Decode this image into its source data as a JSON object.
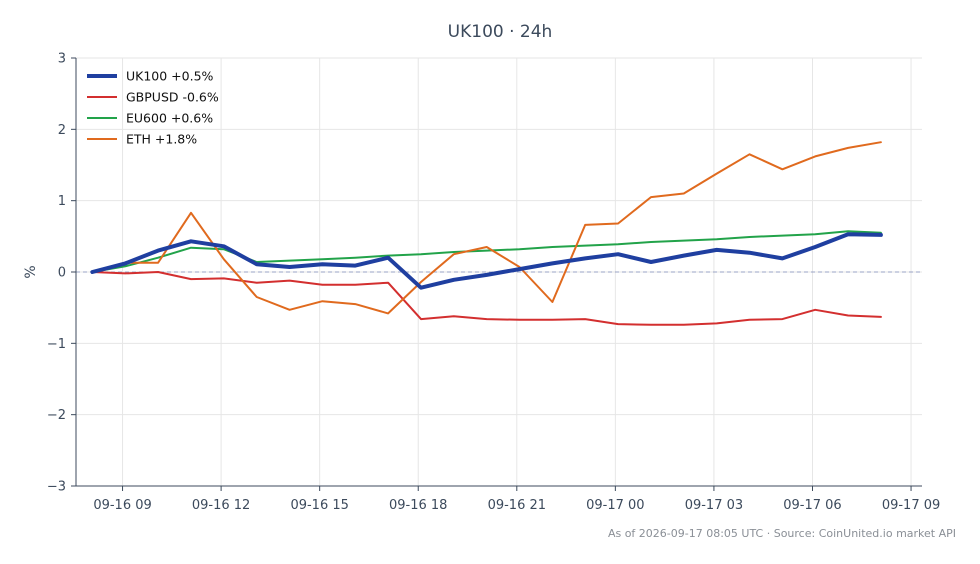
{
  "chart_data": {
    "type": "line",
    "title": "UK100 · 24h",
    "xlabel": "",
    "ylabel": "%",
    "ylim": [
      -3,
      3
    ],
    "yticks": [
      -3,
      -2,
      -1,
      0,
      1,
      2,
      3
    ],
    "ytick_labels": [
      "−3",
      "−2",
      "−1",
      "0",
      "1",
      "2",
      "3"
    ],
    "x_range": [
      "2026-09-16 07:35",
      "2026-09-17 09:20"
    ],
    "xticks": [
      "2026-09-16 09:00",
      "2026-09-16 12:00",
      "2026-09-16 15:00",
      "2026-09-16 18:00",
      "2026-09-16 21:00",
      "2026-09-17 00:00",
      "2026-09-17 03:00",
      "2026-09-17 06:00",
      "2026-09-17 09:00"
    ],
    "xtick_labels": [
      "09-16 09",
      "09-16 12",
      "09-16 15",
      "09-16 18",
      "09-16 21",
      "09-17 00",
      "09-17 03",
      "09-17 06",
      "09-17 09"
    ],
    "grid": true,
    "zero_line": true,
    "legend_position": "top-left",
    "x": [
      "2026-09-16 08:05",
      "2026-09-16 09:05",
      "2026-09-16 10:05",
      "2026-09-16 11:05",
      "2026-09-16 12:05",
      "2026-09-16 13:05",
      "2026-09-16 14:05",
      "2026-09-16 15:05",
      "2026-09-16 16:05",
      "2026-09-16 17:05",
      "2026-09-16 18:05",
      "2026-09-16 19:05",
      "2026-09-16 20:05",
      "2026-09-16 21:05",
      "2026-09-16 22:05",
      "2026-09-16 23:05",
      "2026-09-17 00:05",
      "2026-09-17 01:05",
      "2026-09-17 02:05",
      "2026-09-17 03:05",
      "2026-09-17 04:05",
      "2026-09-17 05:05",
      "2026-09-17 06:05",
      "2026-09-17 07:05",
      "2026-09-17 08:05"
    ],
    "series": [
      {
        "name": "UK100 +0.5%",
        "color": "#1f3fa0",
        "width": 4,
        "values": [
          0.0,
          0.12,
          0.3,
          0.43,
          0.36,
          0.11,
          0.07,
          0.11,
          0.09,
          0.2,
          -0.22,
          -0.11,
          -0.04,
          0.04,
          0.12,
          0.19,
          0.25,
          0.14,
          0.23,
          0.31,
          0.27,
          0.19,
          0.35,
          0.53,
          0.52
        ]
      },
      {
        "name": "GBPUSD -0.6%",
        "color": "#d32f2f",
        "width": 2,
        "values": [
          0.0,
          -0.02,
          0.0,
          -0.1,
          -0.09,
          -0.15,
          -0.12,
          -0.18,
          -0.18,
          -0.15,
          -0.66,
          -0.62,
          -0.66,
          -0.67,
          -0.67,
          -0.66,
          -0.73,
          -0.74,
          -0.74,
          -0.72,
          -0.67,
          -0.66,
          -0.53,
          -0.61,
          -0.63
        ]
      },
      {
        "name": "EU600 +0.6%",
        "color": "#22a34a",
        "width": 2,
        "values": [
          0.0,
          0.08,
          0.2,
          0.34,
          0.32,
          0.14,
          0.16,
          0.18,
          0.2,
          0.23,
          0.25,
          0.28,
          0.3,
          0.32,
          0.35,
          0.37,
          0.39,
          0.42,
          0.44,
          0.46,
          0.49,
          0.51,
          0.53,
          0.57,
          0.55
        ]
      },
      {
        "name": "ETH +1.8%",
        "color": "#e06a1e",
        "width": 2,
        "values": [
          0.0,
          0.13,
          0.13,
          0.83,
          0.18,
          -0.35,
          -0.53,
          -0.41,
          -0.45,
          -0.58,
          -0.14,
          0.25,
          0.35,
          0.07,
          -0.42,
          0.66,
          0.68,
          1.05,
          1.1,
          1.38,
          1.65,
          1.44,
          1.62,
          1.74,
          1.82
        ]
      }
    ],
    "footer": "As of 2026-09-17 08:05 UTC · Source: CoinUnited.io market API"
  }
}
